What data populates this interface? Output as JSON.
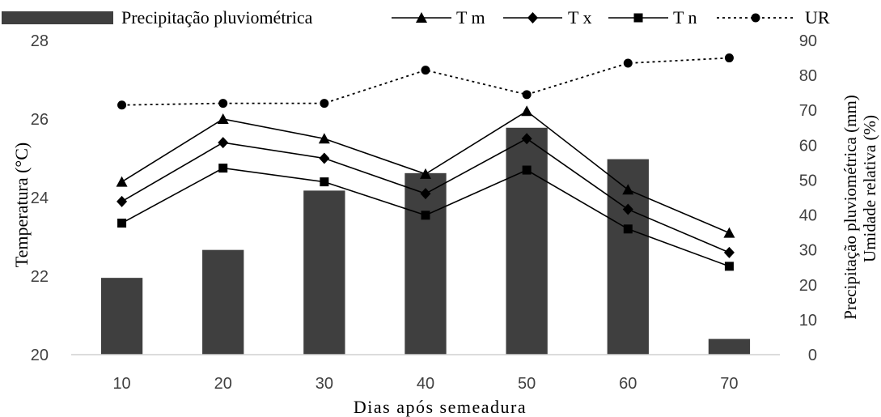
{
  "chart_data": {
    "type": "bar",
    "x": [
      10,
      20,
      30,
      40,
      50,
      60,
      70
    ],
    "xlabel": "Dias após semeadura",
    "ylabel_left": "Temperatura (°C)",
    "ylabel_right_1": "Precipitação pluviométrica (mm)",
    "ylabel_right_2": "Umidade relativa (%)",
    "ylim_left": [
      20,
      28
    ],
    "yticks_left": [
      20,
      22,
      24,
      26,
      28
    ],
    "ylim_right": [
      0,
      90
    ],
    "yticks_right": [
      0,
      10,
      20,
      30,
      40,
      50,
      60,
      70,
      80,
      90
    ],
    "legend_position": "top",
    "grid": false,
    "series": [
      {
        "name": "Precipitação pluviométrica",
        "kind": "bar",
        "axis": "right",
        "color": "#3f3f3f",
        "values": [
          22,
          30,
          47,
          52,
          65,
          56,
          4.5
        ]
      },
      {
        "name": "T m",
        "kind": "line",
        "axis": "left",
        "marker": "triangle",
        "color": "#000000",
        "values": [
          24.4,
          26.0,
          25.5,
          24.6,
          26.2,
          24.2,
          23.1
        ]
      },
      {
        "name": "T x",
        "kind": "line",
        "axis": "left",
        "marker": "diamond",
        "color": "#000000",
        "values": [
          23.9,
          25.4,
          25.0,
          24.1,
          25.5,
          23.7,
          22.6
        ]
      },
      {
        "name": "T n",
        "kind": "line",
        "axis": "left",
        "marker": "square",
        "color": "#000000",
        "values": [
          23.35,
          24.75,
          24.4,
          23.55,
          24.7,
          23.2,
          22.25
        ]
      },
      {
        "name": "UR",
        "kind": "dotted",
        "axis": "right",
        "marker": "circle",
        "color": "#000000",
        "values": [
          71.5,
          72,
          72,
          81.5,
          74.5,
          83.5,
          85
        ]
      }
    ]
  }
}
